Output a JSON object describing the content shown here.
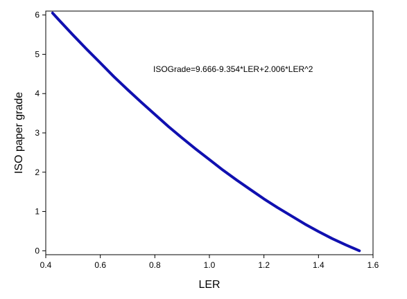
{
  "chart_data": {
    "type": "line",
    "title": "",
    "xlabel": "LER",
    "ylabel": "ISO paper grade",
    "xlim": [
      0.4,
      1.6
    ],
    "ylim": [
      -0.1,
      6.1
    ],
    "xticks": [
      "0.4",
      "0.6",
      "0.8",
      "1.0",
      "1.2",
      "1.4",
      "1.6"
    ],
    "yticks": [
      "0",
      "1",
      "2",
      "3",
      "4",
      "5",
      "6"
    ],
    "grid": false,
    "legend": "none",
    "series_color": "#1010b0",
    "annotation": "ISOGrade=9.666-9.354*LER+2.006*LER^2",
    "series": [
      {
        "x": [
          0.425,
          0.45,
          0.5,
          0.55,
          0.6,
          0.65,
          0.7,
          0.75,
          0.8,
          0.85,
          0.9,
          0.95,
          1.0,
          1.05,
          1.1,
          1.15,
          1.2,
          1.25,
          1.3,
          1.35,
          1.4,
          1.45,
          1.5,
          1.55
        ],
        "y": [
          6.05,
          5.86,
          5.49,
          5.13,
          4.78,
          4.43,
          4.1,
          3.78,
          3.47,
          3.16,
          2.87,
          2.59,
          2.32,
          2.05,
          1.8,
          1.56,
          1.32,
          1.1,
          0.89,
          0.68,
          0.49,
          0.31,
          0.15,
          0.0
        ]
      }
    ]
  }
}
